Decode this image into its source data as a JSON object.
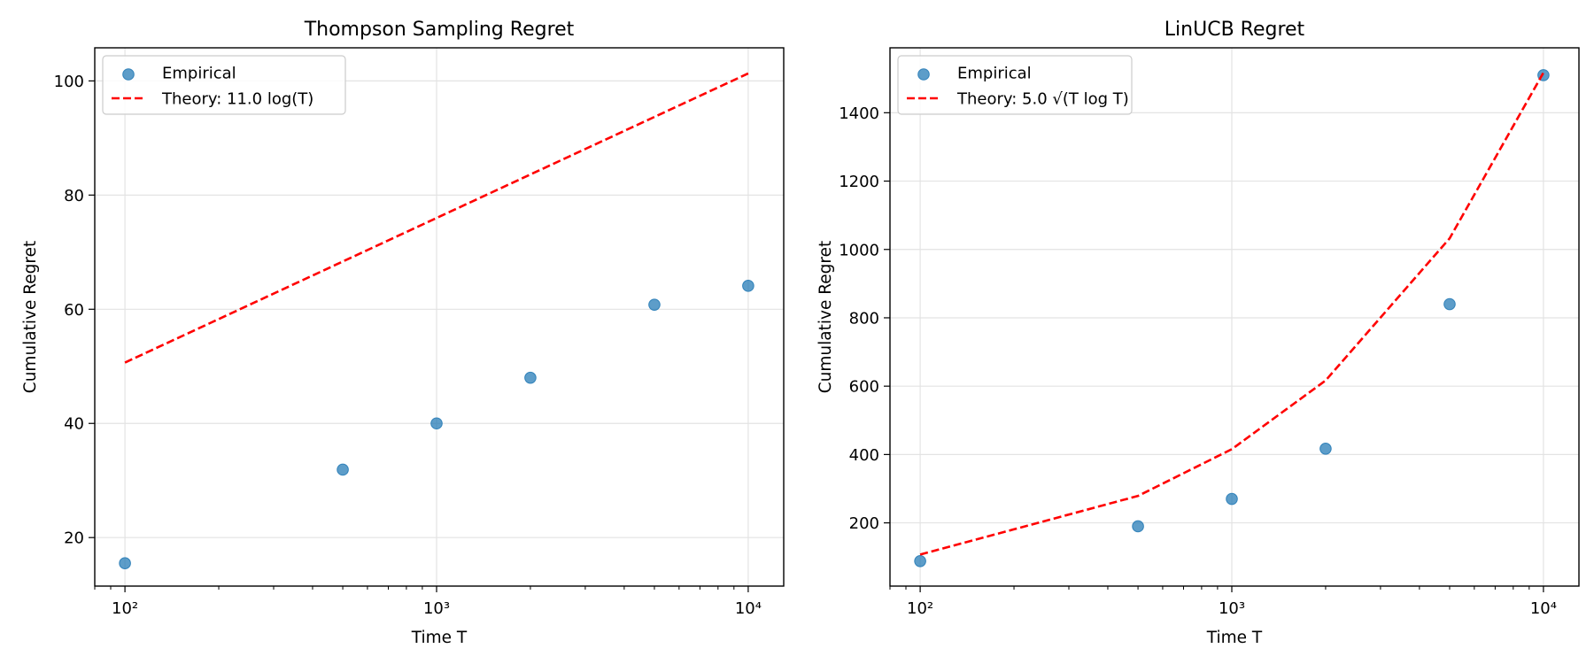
{
  "chart_data": [
    {
      "type": "scatter",
      "title": "Thompson Sampling Regret",
      "xlabel": "Time T",
      "ylabel": "Cumulative Regret",
      "xscale": "log",
      "xlim": [
        80,
        13000
      ],
      "ylim": [
        11.5,
        105.8
      ],
      "xticks": [
        100,
        1000,
        10000
      ],
      "xtick_labels": [
        "10²",
        "10³",
        "10⁴"
      ],
      "yticks": [
        20,
        40,
        60,
        80,
        100
      ],
      "ytick_labels": [
        "20",
        "40",
        "60",
        "80",
        "100"
      ],
      "grid": true,
      "legend_position": "top-left",
      "series": [
        {
          "name": "Empirical",
          "kind": "scatter",
          "color": "#1f77b4",
          "x": [
            100,
            500,
            1000,
            2000,
            5000,
            10000
          ],
          "y": [
            15.5,
            31.9,
            40.0,
            48.0,
            60.8,
            64.1
          ]
        },
        {
          "name": "Theory: 11.0 log(T)",
          "kind": "line",
          "style": "dashed",
          "color": "#ff0000",
          "x": [
            100,
            500,
            1000,
            2000,
            5000,
            10000
          ],
          "y": [
            50.66,
            68.36,
            75.99,
            83.61,
            93.69,
            101.31
          ]
        }
      ]
    },
    {
      "type": "scatter",
      "title": "LinUCB Regret",
      "xlabel": "Time T",
      "ylabel": "Cumulative Regret",
      "xscale": "log",
      "xlim": [
        80,
        13000
      ],
      "ylim": [
        15,
        1590
      ],
      "xticks": [
        100,
        1000,
        10000
      ],
      "xtick_labels": [
        "10²",
        "10³",
        "10⁴"
      ],
      "yticks": [
        200,
        400,
        600,
        800,
        1000,
        1200,
        1400
      ],
      "ytick_labels": [
        "200",
        "400",
        "600",
        "800",
        "1000",
        "1200",
        "1400"
      ],
      "grid": true,
      "legend_position": "top-left",
      "series": [
        {
          "name": "Empirical",
          "kind": "scatter",
          "color": "#1f77b4",
          "x": [
            100,
            500,
            1000,
            2000,
            5000,
            10000
          ],
          "y": [
            88,
            190,
            270,
            417,
            840,
            1510
          ]
        },
        {
          "name": "Theory: 5.0 √(T log T)",
          "kind": "line",
          "style": "dashed",
          "color": "#ff0000",
          "x": [
            100,
            500,
            1000,
            2000,
            5000,
            10000
          ],
          "y": [
            107.3,
            278.8,
            415.6,
            616.6,
            1032.5,
            1517.3
          ]
        }
      ]
    }
  ]
}
